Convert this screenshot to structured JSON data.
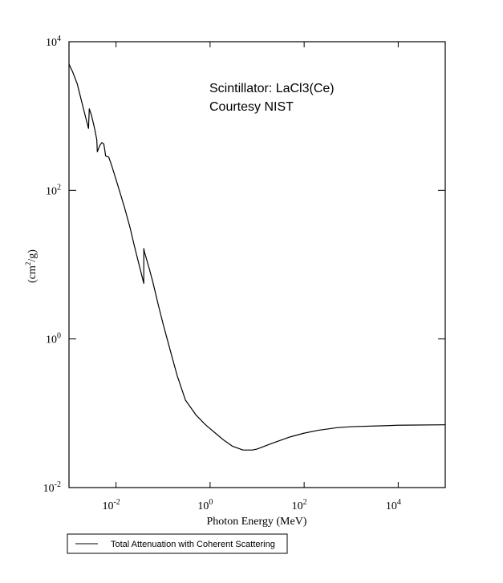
{
  "chart_data": {
    "type": "line",
    "title": "",
    "xlabel": "Photon Energy (MeV)",
    "ylabel_base": "(cm",
    "ylabel_sup": "2",
    "ylabel_rest": "/g)",
    "xscale": "log",
    "yscale": "log",
    "xlim": [
      0.001,
      100000
    ],
    "ylim": [
      0.01,
      10000
    ],
    "grid": false,
    "x_ticks": [
      {
        "base": "10",
        "exp": "-2",
        "value": 0.01
      },
      {
        "base": "10",
        "exp": "0",
        "value": 1
      },
      {
        "base": "10",
        "exp": "2",
        "value": 100
      },
      {
        "base": "10",
        "exp": "4",
        "value": 10000
      }
    ],
    "y_ticks": [
      {
        "base": "10",
        "exp": "-2",
        "value": 0.01
      },
      {
        "base": "10",
        "exp": "0",
        "value": 1
      },
      {
        "base": "10",
        "exp": "2",
        "value": 100
      },
      {
        "base": "10",
        "exp": "4",
        "value": 10000
      }
    ],
    "annotations": [
      "Scintillator: LaCl3(Ce)",
      "Courtesy NIST"
    ],
    "legend_position": "bottom-left, below plot",
    "series": [
      {
        "name": "Total Attenuation with Coherent Scattering",
        "x": [
          0.001,
          0.0012,
          0.0015,
          0.002,
          0.0026,
          0.0027,
          0.003,
          0.0035,
          0.0039,
          0.004,
          0.0045,
          0.005,
          0.0055,
          0.0058,
          0.006,
          0.007,
          0.008,
          0.01,
          0.015,
          0.02,
          0.025,
          0.0389,
          0.039,
          0.04,
          0.05,
          0.06,
          0.08,
          0.1,
          0.15,
          0.2,
          0.3,
          0.5,
          0.8,
          1,
          1.5,
          2,
          3,
          5,
          8,
          10,
          20,
          50,
          100,
          200,
          500,
          1000,
          5000,
          10000,
          100000
        ],
        "y": [
          5000,
          3900,
          2700,
          1300,
          680,
          1250,
          1030,
          680,
          480,
          330,
          400,
          440,
          420,
          340,
          290,
          280,
          220,
          140,
          60,
          31,
          17,
          5.6,
          16.5,
          15,
          9.2,
          6,
          2.8,
          1.6,
          0.62,
          0.32,
          0.15,
          0.095,
          0.07,
          0.062,
          0.05,
          0.043,
          0.036,
          0.032,
          0.032,
          0.033,
          0.039,
          0.048,
          0.054,
          0.059,
          0.064,
          0.066,
          0.068,
          0.069,
          0.07
        ]
      }
    ]
  }
}
